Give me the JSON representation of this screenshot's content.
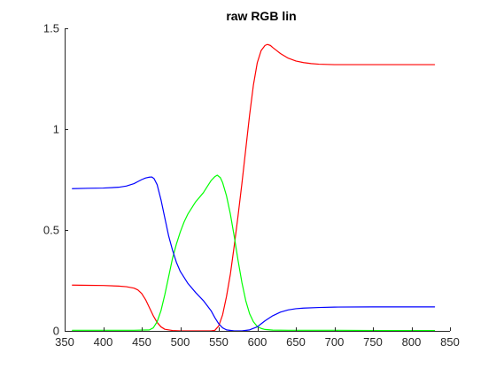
{
  "chart_data": {
    "type": "line",
    "title": "raw RGB lin",
    "xlabel": "",
    "ylabel": "",
    "xlim": [
      350,
      850
    ],
    "ylim": [
      0,
      1.5
    ],
    "xticks": [
      350,
      400,
      450,
      500,
      550,
      600,
      650,
      700,
      750,
      800,
      850
    ],
    "xtick_labels": [
      "350",
      "400",
      "450",
      "500",
      "550",
      "600",
      "650",
      "700",
      "750",
      "800",
      "850"
    ],
    "yticks": [
      0,
      0.5,
      1,
      1.5
    ],
    "ytick_labels": [
      "0",
      "0.5",
      "1",
      "1.5"
    ],
    "grid": false,
    "legend": "none",
    "series": [
      {
        "color": "#ff0000",
        "x": [
          360,
          380,
          400,
          420,
          430,
          440,
          445,
          450,
          455,
          460,
          465,
          470,
          475,
          480,
          490,
          500,
          510,
          520,
          530,
          540,
          545,
          550,
          555,
          560,
          565,
          570,
          575,
          580,
          585,
          590,
          595,
          600,
          605,
          610,
          613,
          617,
          620,
          625,
          630,
          640,
          650,
          660,
          670,
          680,
          700,
          750,
          800,
          830
        ],
        "y": [
          0.227,
          0.226,
          0.225,
          0.222,
          0.219,
          0.212,
          0.203,
          0.185,
          0.155,
          0.115,
          0.075,
          0.042,
          0.02,
          0.008,
          0.002,
          0.0,
          0.0,
          0.0,
          0.0,
          0.0,
          0.003,
          0.025,
          0.08,
          0.17,
          0.28,
          0.42,
          0.57,
          0.73,
          0.9,
          1.07,
          1.22,
          1.33,
          1.39,
          1.415,
          1.42,
          1.415,
          1.405,
          1.39,
          1.375,
          1.352,
          1.338,
          1.33,
          1.325,
          1.322,
          1.32,
          1.32,
          1.32,
          1.32
        ]
      },
      {
        "color": "#00ff00",
        "x": [
          360,
          400,
          440,
          460,
          465,
          470,
          475,
          480,
          485,
          490,
          495,
          500,
          505,
          510,
          520,
          530,
          535,
          540,
          545,
          548,
          552,
          555,
          560,
          565,
          570,
          575,
          580,
          585,
          590,
          595,
          600,
          605,
          610,
          620,
          640,
          700,
          760,
          830
        ],
        "y": [
          0.003,
          0.003,
          0.003,
          0.005,
          0.015,
          0.045,
          0.1,
          0.18,
          0.27,
          0.36,
          0.43,
          0.49,
          0.54,
          0.58,
          0.64,
          0.685,
          0.715,
          0.745,
          0.765,
          0.772,
          0.76,
          0.735,
          0.67,
          0.58,
          0.47,
          0.35,
          0.24,
          0.15,
          0.085,
          0.045,
          0.022,
          0.012,
          0.007,
          0.004,
          0.003,
          0.003,
          0.002,
          0.002
        ]
      },
      {
        "color": "#0000ff",
        "x": [
          360,
          380,
          400,
          420,
          430,
          440,
          445,
          450,
          455,
          460,
          463,
          466,
          470,
          475,
          480,
          485,
          490,
          495,
          500,
          510,
          520,
          530,
          540,
          545,
          550,
          555,
          560,
          570,
          580,
          590,
          600,
          605,
          610,
          620,
          630,
          640,
          650,
          660,
          680,
          700,
          750,
          800,
          830
        ],
        "y": [
          0.705,
          0.707,
          0.708,
          0.712,
          0.718,
          0.73,
          0.74,
          0.75,
          0.758,
          0.762,
          0.763,
          0.755,
          0.725,
          0.65,
          0.56,
          0.47,
          0.4,
          0.34,
          0.295,
          0.235,
          0.19,
          0.15,
          0.1,
          0.065,
          0.035,
          0.015,
          0.005,
          0.0,
          0.0,
          0.005,
          0.02,
          0.035,
          0.05,
          0.075,
          0.093,
          0.104,
          0.11,
          0.113,
          0.116,
          0.118,
          0.119,
          0.119,
          0.119
        ]
      }
    ]
  }
}
